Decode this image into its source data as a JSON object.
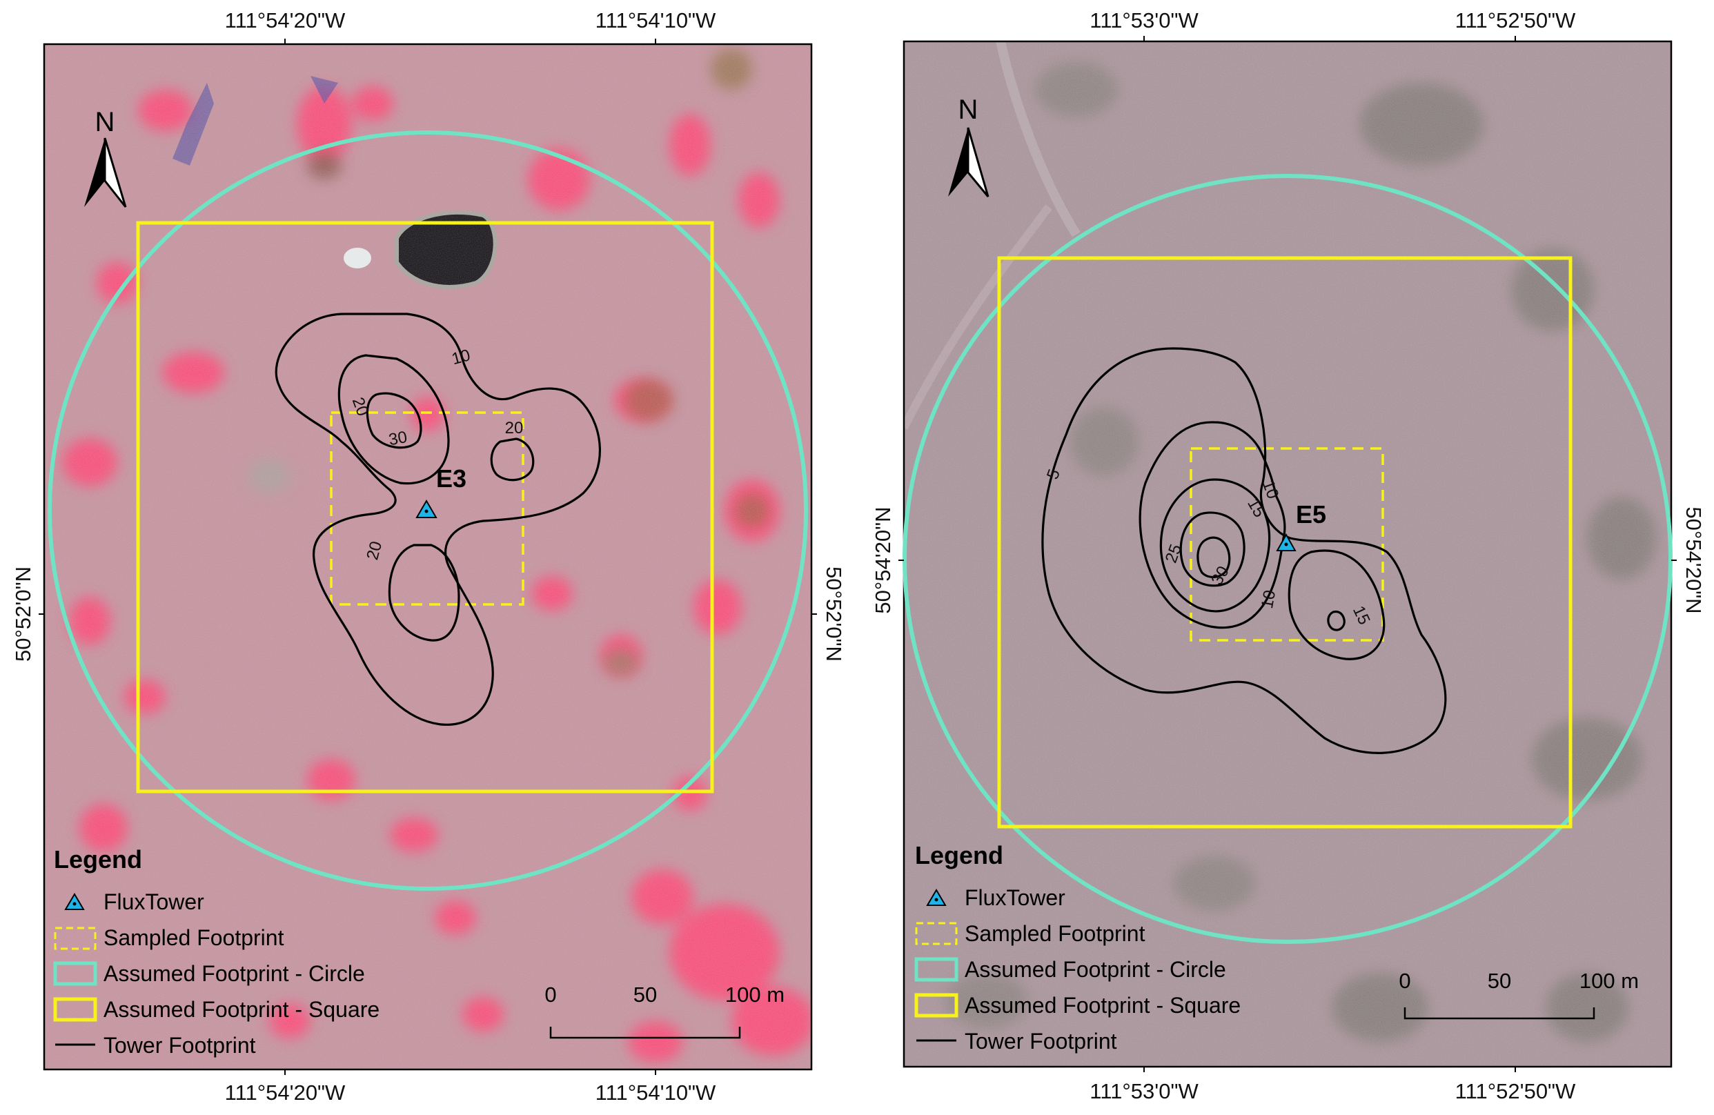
{
  "colors": {
    "circle": "#6fe3c4",
    "square": "#f7f21a",
    "sampled": "#f7f21a",
    "contour": "#000000",
    "tower_fill": "#1fb4e8",
    "tower_edge": "#000000",
    "map_left_base": "#c08f9a",
    "map_right_base": "#a48f96",
    "vegetation": "#ff3c6e",
    "water": "#0c0c10"
  },
  "north_arrow": {
    "label": "N",
    "icon": "north-arrow-icon"
  },
  "legend": {
    "title": "Legend",
    "items": [
      {
        "label": "FluxTower",
        "symbol": "triangle-icon"
      },
      {
        "label": "Sampled Footprint",
        "symbol": "dashed-square-icon"
      },
      {
        "label": "Assumed Footprint - Circle",
        "symbol": "cyan-box-icon"
      },
      {
        "label": "Assumed Footprint - Square",
        "symbol": "yellow-box-icon"
      },
      {
        "label": "Tower Footprint",
        "symbol": "line-icon"
      }
    ]
  },
  "panels": [
    {
      "site": "E3",
      "top_ticks": [
        "111°54'20\"W",
        "111°54'10\"W"
      ],
      "bottom_ticks": [
        "111°54'20\"W",
        "111°54'10\"W"
      ],
      "left_tick": "50°52'0\"N",
      "right_tick": "50°52'0\"N",
      "contour_labels": [
        "10",
        "20",
        "30",
        "20",
        "20"
      ],
      "scale": {
        "labels": [
          "0",
          "50",
          "100 m"
        ]
      }
    },
    {
      "site": "E5",
      "top_ticks": [
        "111°53'0\"W",
        "111°52'50\"W"
      ],
      "bottom_ticks": [
        "111°53'0\"W",
        "111°52'50\"W"
      ],
      "left_tick": "50°54'20\"N",
      "right_tick": "50°54'20\"N",
      "contour_labels": [
        "5",
        "10",
        "15",
        "25",
        "30",
        "10",
        "15"
      ],
      "scale": {
        "labels": [
          "0",
          "50",
          "100 m"
        ]
      }
    }
  ]
}
